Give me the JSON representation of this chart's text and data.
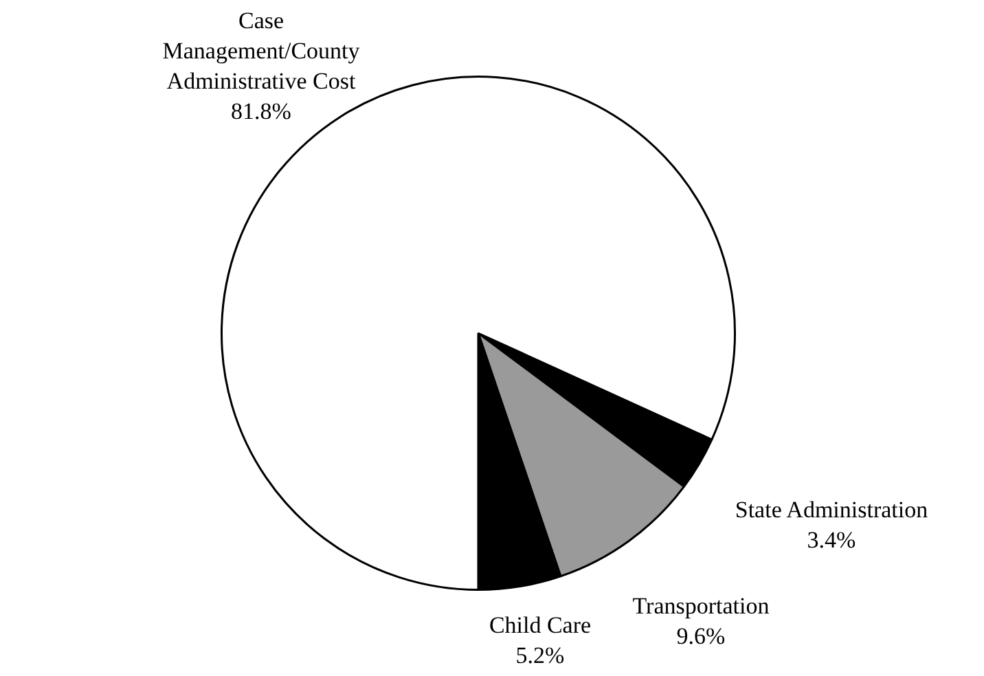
{
  "chart_data": {
    "type": "pie",
    "categories": [
      "State Administration",
      "Transportation",
      "Child Care",
      "Case Management/County Administrative Cost"
    ],
    "values": [
      3.4,
      9.6,
      5.2,
      81.8
    ],
    "colors": [
      "#000000",
      "#9a9a9a",
      "#000000",
      "#ffffff"
    ],
    "value_labels": [
      "3.4%",
      "9.6%",
      "5.2%",
      "81.8%"
    ]
  }
}
